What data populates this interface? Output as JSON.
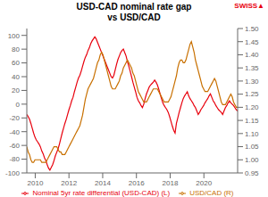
{
  "chart_data": {
    "type": "line",
    "title": "USD-CAD nominal rate gap\nvs USD/CAD",
    "annotations": [
      {
        "text": "SWISS▲",
        "color": "#e8000d"
      }
    ],
    "grid": false,
    "legend": "bottom",
    "xlim": [
      2009.5,
      2022.0
    ],
    "xticks": [
      2010,
      2012,
      2014,
      2016,
      2018,
      2020
    ],
    "ylim": [
      -100,
      110
    ],
    "yticks": [
      -100,
      -80,
      -60,
      -40,
      -20,
      0,
      20,
      40,
      60,
      80,
      100
    ],
    "y2lim": [
      0.95,
      1.5
    ],
    "y2ticks": [
      0.95,
      {
        "value": 1.0,
        "label": "1.00"
      },
      1.05,
      {
        "value": 1.1,
        "label": "1.10"
      },
      1.15,
      {
        "value": 1.2,
        "label": "1.20"
      },
      1.25,
      {
        "value": 1.3,
        "label": "1.30"
      },
      1.35,
      {
        "value": 1.4,
        "label": "1.40"
      },
      1.45,
      {
        "value": 1.5,
        "label": "1.50"
      }
    ],
    "x": [
      2009.5,
      2009.5806,
      2009.6613,
      2009.7419,
      2009.8226,
      2009.9032,
      2009.9839,
      2010.0645,
      2010.1452,
      2010.2258,
      2010.3065,
      2010.3871,
      2010.4677,
      2010.5484,
      2010.629,
      2010.7097,
      2010.7903,
      2010.871,
      2010.9516,
      2011.0323,
      2011.1129,
      2011.1935,
      2011.2742,
      2011.3548,
      2011.4355,
      2011.5161,
      2011.5968,
      2011.6774,
      2011.7581,
      2011.8387,
      2011.9194,
      2012.0,
      2012.0806,
      2012.1613,
      2012.2419,
      2012.3226,
      2012.4032,
      2012.4839,
      2012.5645,
      2012.6452,
      2012.7258,
      2012.8065,
      2012.8871,
      2012.9677,
      2013.0484,
      2013.129,
      2013.2097,
      2013.2903,
      2013.371,
      2013.4516,
      2013.5323,
      2013.6129,
      2013.6935,
      2013.7742,
      2013.8548,
      2013.9355,
      2014.0161,
      2014.0968,
      2014.1774,
      2014.2581,
      2014.3387,
      2014.4194,
      2014.5,
      2014.5806,
      2014.6613,
      2014.7419,
      2014.8226,
      2014.9032,
      2014.9839,
      2015.0645,
      2015.1452,
      2015.2258,
      2015.3065,
      2015.3871,
      2015.4677,
      2015.5484,
      2015.629,
      2015.7097,
      2015.7903,
      2015.871,
      2015.9516,
      2016.0323,
      2016.1129,
      2016.1935,
      2016.2742,
      2016.3548,
      2016.4355,
      2016.5161,
      2016.5968,
      2016.6774,
      2016.7581,
      2016.8387,
      2016.9194,
      2017.0,
      2017.0806,
      2017.1613,
      2017.2419,
      2017.3226,
      2017.4032,
      2017.4839,
      2017.5645,
      2017.6452,
      2017.7258,
      2017.8065,
      2017.8871,
      2017.9677,
      2018.0484,
      2018.129,
      2018.2097,
      2018.2903,
      2018.371,
      2018.4516,
      2018.5323,
      2018.6129,
      2018.6935,
      2018.7742,
      2018.8548,
      2018.9355,
      2019.0161,
      2019.0968,
      2019.1774,
      2019.2581,
      2019.3387,
      2019.4194,
      2019.5,
      2019.5806,
      2019.6613,
      2019.7419,
      2019.8226,
      2019.9032,
      2019.9839,
      2020.0645,
      2020.1452,
      2020.2258,
      2020.3065,
      2020.3871,
      2020.4677,
      2020.5484,
      2020.629,
      2020.7097,
      2020.7903,
      2020.871,
      2020.9516,
      2021.0323,
      2021.1129,
      2021.1935,
      2021.2742,
      2021.3548,
      2021.4355,
      2021.5161,
      2021.5968,
      2021.6774,
      2021.7581,
      2021.8387,
      2021.9194,
      2022.0
    ],
    "series": [
      {
        "name": "Nominal 5yr rate differential (USD-CAD) (L)",
        "color": "#e8000d",
        "values": [
          -15,
          -18,
          -22,
          -28,
          -35,
          -42,
          -48,
          -52,
          -55,
          -58,
          -62,
          -68,
          -72,
          -78,
          -82,
          -88,
          -93,
          -96,
          -92,
          -88,
          -82,
          -75,
          -70,
          -65,
          -58,
          -50,
          -42,
          -35,
          -28,
          -22,
          -15,
          -8,
          -2,
          5,
          10,
          18,
          25,
          32,
          38,
          42,
          48,
          55,
          62,
          68,
          72,
          78,
          82,
          88,
          92,
          95,
          98,
          95,
          90,
          85,
          80,
          75,
          70,
          65,
          60,
          55,
          50,
          45,
          40,
          38,
          42,
          50,
          58,
          65,
          70,
          75,
          78,
          80,
          75,
          70,
          62,
          55,
          48,
          40,
          32,
          25,
          18,
          10,
          5,
          2,
          -2,
          -5,
          0,
          8,
          15,
          20,
          25,
          28,
          30,
          32,
          35,
          32,
          28,
          22,
          15,
          8,
          2,
          -2,
          -5,
          -8,
          -12,
          -18,
          -25,
          -32,
          -38,
          -42,
          -28,
          -20,
          -12,
          -5,
          2,
          8,
          12,
          15,
          18,
          12,
          8,
          5,
          2,
          -2,
          -5,
          -10,
          -15,
          -12,
          -8,
          -5,
          -2,
          2,
          5,
          8,
          12,
          15,
          10,
          5,
          2,
          -2,
          -5,
          -8,
          -10,
          -12,
          -15,
          -10,
          -5,
          -2,
          2,
          5,
          2,
          0,
          -2,
          -5,
          -8,
          -10
        ]
      },
      {
        "name": "USD/CAD (R)",
        "color": "#c87000",
        "axis": "y2",
        "values": [
          1.05,
          1.03,
          1.02,
          1.0,
          0.99,
          0.99,
          1.0,
          1.0,
          1.0,
          1.0,
          1.0,
          0.99,
          0.99,
          0.99,
          0.99,
          1.0,
          1.01,
          1.02,
          1.03,
          1.04,
          1.05,
          1.05,
          1.05,
          1.04,
          1.03,
          1.03,
          1.02,
          1.02,
          1.02,
          1.03,
          1.04,
          1.05,
          1.06,
          1.07,
          1.08,
          1.09,
          1.1,
          1.11,
          1.12,
          1.13,
          1.15,
          1.17,
          1.2,
          1.23,
          1.25,
          1.27,
          1.28,
          1.29,
          1.3,
          1.31,
          1.33,
          1.35,
          1.37,
          1.38,
          1.4,
          1.41,
          1.4,
          1.38,
          1.36,
          1.34,
          1.32,
          1.3,
          1.28,
          1.27,
          1.27,
          1.27,
          1.28,
          1.29,
          1.3,
          1.32,
          1.33,
          1.35,
          1.36,
          1.37,
          1.38,
          1.37,
          1.36,
          1.35,
          1.33,
          1.32,
          1.3,
          1.28,
          1.26,
          1.25,
          1.24,
          1.23,
          1.22,
          1.22,
          1.22,
          1.23,
          1.24,
          1.25,
          1.26,
          1.27,
          1.27,
          1.27,
          1.27,
          1.26,
          1.25,
          1.24,
          1.23,
          1.22,
          1.22,
          1.22,
          1.22,
          1.23,
          1.24,
          1.26,
          1.28,
          1.3,
          1.32,
          1.35,
          1.37,
          1.38,
          1.38,
          1.37,
          1.37,
          1.38,
          1.4,
          1.42,
          1.44,
          1.45,
          1.43,
          1.41,
          1.38,
          1.36,
          1.34,
          1.32,
          1.3,
          1.28,
          1.27,
          1.26,
          1.26,
          1.26,
          1.27,
          1.28,
          1.29,
          1.3,
          1.31,
          1.3,
          1.28,
          1.26,
          1.24,
          1.22,
          1.21,
          1.21,
          1.21,
          1.22,
          1.23,
          1.24,
          1.25,
          1.24,
          1.22,
          1.21,
          1.2,
          1.2
        ]
      }
    ]
  }
}
